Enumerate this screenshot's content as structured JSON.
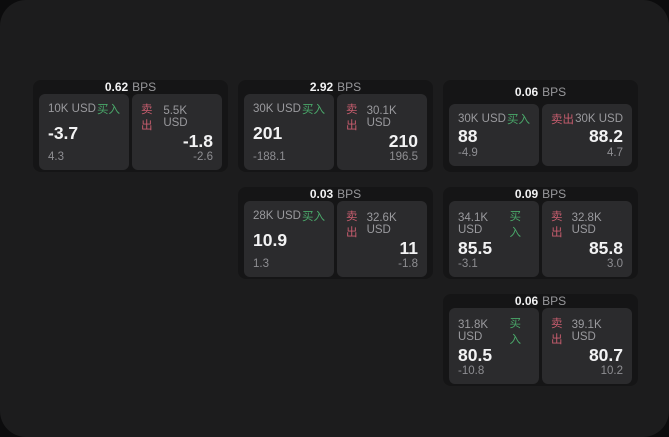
{
  "page": {
    "backdrop_color": "#0c0c0d",
    "window_color": "#1c1c1d"
  },
  "colors": {
    "card_bg": "#151516",
    "panel_bg": "#2b2b2d",
    "buy_green": "#4aa86a",
    "sell_red": "#c75d6e",
    "text_primary": "#f2f2f3",
    "text_muted": "#9a9a9e"
  },
  "labels": {
    "bps_unit": "BPS",
    "buy": "买入",
    "sell": "卖出"
  },
  "cards": [
    {
      "bps": "0.62",
      "buy": {
        "size": "10K USD",
        "price": "-3.7",
        "delta": "4.3"
      },
      "sell": {
        "size": "5.5K USD",
        "price": "-1.8",
        "delta": "-2.6"
      }
    },
    {
      "bps": "2.92",
      "buy": {
        "size": "30K USD",
        "price": "201",
        "delta": "-188.1"
      },
      "sell": {
        "size": "30.1K USD",
        "price": "210",
        "delta": "196.5"
      }
    },
    {
      "bps": "0.06",
      "buy": {
        "size": "30K USD",
        "price": "88",
        "delta": "-4.9"
      },
      "sell": {
        "size": "30K USD",
        "price": "88.2",
        "delta": "4.7"
      }
    },
    {
      "bps": "0.03",
      "buy": {
        "size": "28K USD",
        "price": "10.9",
        "delta": "1.3"
      },
      "sell": {
        "size": "32.6K USD",
        "price": "11",
        "delta": "-1.8"
      }
    },
    {
      "bps": "0.09",
      "buy": {
        "size": "34.1K USD",
        "price": "85.5",
        "delta": "-3.1"
      },
      "sell": {
        "size": "32.8K USD",
        "price": "85.8",
        "delta": "3.0"
      }
    },
    {
      "bps": "0.06",
      "buy": {
        "size": "31.8K USD",
        "price": "80.5",
        "delta": "-10.8"
      },
      "sell": {
        "size": "39.1K USD",
        "price": "80.7",
        "delta": "10.2"
      }
    }
  ]
}
